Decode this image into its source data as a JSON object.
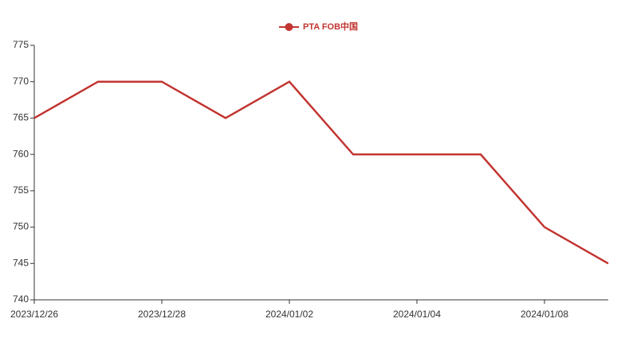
{
  "chart_data": {
    "type": "line",
    "categories": [
      "2023/12/26",
      null,
      "2023/12/28",
      null,
      "2024/01/02",
      null,
      "2024/01/04",
      null,
      "2024/01/08",
      null
    ],
    "series": [
      {
        "name": "PTA FOB中国",
        "color": "#c23531",
        "values": [
          765,
          770,
          770,
          765,
          770,
          760,
          760,
          760,
          750,
          745
        ]
      }
    ],
    "ylim": [
      740,
      775
    ],
    "yticks": [
      740,
      745,
      750,
      755,
      760,
      765,
      770,
      775
    ],
    "grid": false,
    "legend": "top"
  }
}
